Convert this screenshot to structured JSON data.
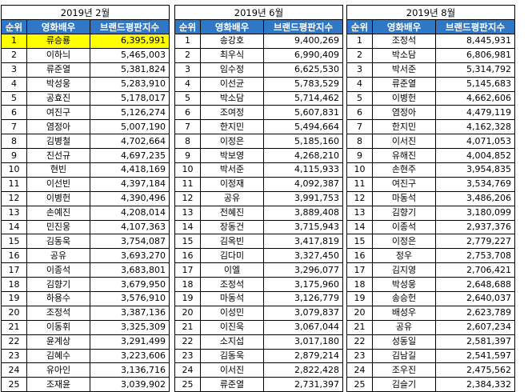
{
  "headers": {
    "rank": "순위",
    "actor": "영화배우",
    "index": "브랜드평판지수"
  },
  "highlight_color": "#ffff00",
  "header_color": "#2f78c7",
  "panels": [
    {
      "period": "2019년 2월",
      "rows": [
        {
          "rank": "1",
          "name": "류승룡",
          "value": "6,395,991",
          "hl": true
        },
        {
          "rank": "2",
          "name": "이하늬",
          "value": "5,465,003",
          "hl": false
        },
        {
          "rank": "3",
          "name": "류준열",
          "value": "5,381,824",
          "hl": false
        },
        {
          "rank": "4",
          "name": "박성웅",
          "value": "5,283,910",
          "hl": false
        },
        {
          "rank": "5",
          "name": "공효진",
          "value": "5,178,017",
          "hl": false
        },
        {
          "rank": "6",
          "name": "여진구",
          "value": "5,126,274",
          "hl": false
        },
        {
          "rank": "7",
          "name": "염정아",
          "value": "5,007,190",
          "hl": false
        },
        {
          "rank": "8",
          "name": "김병철",
          "value": "4,702,664",
          "hl": false
        },
        {
          "rank": "9",
          "name": "진선규",
          "value": "4,697,235",
          "hl": false
        },
        {
          "rank": "10",
          "name": "현빈",
          "value": "4,418,169",
          "hl": false
        },
        {
          "rank": "11",
          "name": "이선빈",
          "value": "4,397,184",
          "hl": false
        },
        {
          "rank": "12",
          "name": "이병헌",
          "value": "4,390,496",
          "hl": false
        },
        {
          "rank": "13",
          "name": "손예진",
          "value": "4,208,014",
          "hl": false
        },
        {
          "rank": "14",
          "name": "민진웅",
          "value": "4,107,363",
          "hl": false
        },
        {
          "rank": "15",
          "name": "김동욱",
          "value": "3,754,087",
          "hl": false
        },
        {
          "rank": "16",
          "name": "공유",
          "value": "3,693,270",
          "hl": false
        },
        {
          "rank": "17",
          "name": "이종석",
          "value": "3,683,801",
          "hl": false
        },
        {
          "rank": "18",
          "name": "김향기",
          "value": "3,679,950",
          "hl": false
        },
        {
          "rank": "19",
          "name": "하용수",
          "value": "3,576,910",
          "hl": false
        },
        {
          "rank": "20",
          "name": "조정석",
          "value": "3,387,136",
          "hl": false
        },
        {
          "rank": "21",
          "name": "이동휘",
          "value": "3,325,309",
          "hl": false
        },
        {
          "rank": "22",
          "name": "윤계상",
          "value": "3,291,499",
          "hl": false
        },
        {
          "rank": "23",
          "name": "김혜수",
          "value": "3,223,606",
          "hl": false
        },
        {
          "rank": "24",
          "name": "유아인",
          "value": "3,136,716",
          "hl": false
        },
        {
          "rank": "25",
          "name": "조재윤",
          "value": "3,039,902",
          "hl": false
        }
      ]
    },
    {
      "period": "2019년 6월",
      "rows": [
        {
          "rank": "1",
          "name": "송강호",
          "value": "9,400,269",
          "hl": false
        },
        {
          "rank": "2",
          "name": "최우식",
          "value": "6,990,409",
          "hl": false
        },
        {
          "rank": "3",
          "name": "임수정",
          "value": "6,625,530",
          "hl": false
        },
        {
          "rank": "4",
          "name": "이선균",
          "value": "5,783,529",
          "hl": false
        },
        {
          "rank": "5",
          "name": "박소담",
          "value": "5,714,462",
          "hl": false
        },
        {
          "rank": "6",
          "name": "조여정",
          "value": "5,607,831",
          "hl": false
        },
        {
          "rank": "7",
          "name": "한지민",
          "value": "5,494,664",
          "hl": false
        },
        {
          "rank": "8",
          "name": "이정은",
          "value": "5,185,160",
          "hl": false
        },
        {
          "rank": "9",
          "name": "박보영",
          "value": "4,268,210",
          "hl": false
        },
        {
          "rank": "10",
          "name": "박서준",
          "value": "4,115,933",
          "hl": false
        },
        {
          "rank": "11",
          "name": "이정재",
          "value": "4,092,387",
          "hl": false
        },
        {
          "rank": "12",
          "name": "공유",
          "value": "3,991,753",
          "hl": false
        },
        {
          "rank": "13",
          "name": "전혜진",
          "value": "3,889,408",
          "hl": false
        },
        {
          "rank": "14",
          "name": "장동건",
          "value": "3,715,943",
          "hl": false
        },
        {
          "rank": "15",
          "name": "김옥빈",
          "value": "3,417,819",
          "hl": false
        },
        {
          "rank": "16",
          "name": "김다미",
          "value": "3,327,450",
          "hl": false
        },
        {
          "rank": "17",
          "name": "이엘",
          "value": "3,296,077",
          "hl": false
        },
        {
          "rank": "18",
          "name": "조정석",
          "value": "3,175,960",
          "hl": false
        },
        {
          "rank": "19",
          "name": "마동석",
          "value": "3,126,779",
          "hl": false
        },
        {
          "rank": "20",
          "name": "이성민",
          "value": "3,079,837",
          "hl": false
        },
        {
          "rank": "21",
          "name": "이진욱",
          "value": "3,067,044",
          "hl": false
        },
        {
          "rank": "22",
          "name": "소지섭",
          "value": "3,017,180",
          "hl": false
        },
        {
          "rank": "23",
          "name": "김동욱",
          "value": "2,879,214",
          "hl": false
        },
        {
          "rank": "24",
          "name": "이서진",
          "value": "2,822,428",
          "hl": false
        },
        {
          "rank": "25",
          "name": "류준열",
          "value": "2,731,397",
          "hl": false
        }
      ]
    },
    {
      "period": "2019년 8월",
      "rows": [
        {
          "rank": "1",
          "name": "조정석",
          "value": "8,445,931",
          "hl": false
        },
        {
          "rank": "2",
          "name": "박소담",
          "value": "6,806,981",
          "hl": false
        },
        {
          "rank": "3",
          "name": "박서준",
          "value": "5,314,792",
          "hl": false
        },
        {
          "rank": "4",
          "name": "류준열",
          "value": "5,145,683",
          "hl": false
        },
        {
          "rank": "5",
          "name": "이병헌",
          "value": "4,662,606",
          "hl": false
        },
        {
          "rank": "6",
          "name": "염정아",
          "value": "4,479,119",
          "hl": false
        },
        {
          "rank": "7",
          "name": "한지민",
          "value": "4,162,328",
          "hl": false
        },
        {
          "rank": "8",
          "name": "이서진",
          "value": "4,071,053",
          "hl": false
        },
        {
          "rank": "9",
          "name": "유해진",
          "value": "4,004,852",
          "hl": false
        },
        {
          "rank": "10",
          "name": "손현주",
          "value": "3,954,835",
          "hl": false
        },
        {
          "rank": "11",
          "name": "여진구",
          "value": "3,534,769",
          "hl": false
        },
        {
          "rank": "12",
          "name": "마동석",
          "value": "3,486,206",
          "hl": false
        },
        {
          "rank": "13",
          "name": "김향기",
          "value": "3,180,099",
          "hl": false
        },
        {
          "rank": "14",
          "name": "이종석",
          "value": "2,937,376",
          "hl": false
        },
        {
          "rank": "15",
          "name": "이정은",
          "value": "2,779,227",
          "hl": false
        },
        {
          "rank": "16",
          "name": "정우",
          "value": "2,753,708",
          "hl": false
        },
        {
          "rank": "17",
          "name": "김지영",
          "value": "2,706,421",
          "hl": false
        },
        {
          "rank": "18",
          "name": "박성웅",
          "value": "2,648,688",
          "hl": false
        },
        {
          "rank": "19",
          "name": "송승헌",
          "value": "2,640,037",
          "hl": false
        },
        {
          "rank": "20",
          "name": "배성우",
          "value": "2,623,789",
          "hl": false
        },
        {
          "rank": "21",
          "name": "공유",
          "value": "2,607,234",
          "hl": false
        },
        {
          "rank": "22",
          "name": "성동일",
          "value": "2,581,397",
          "hl": false
        },
        {
          "rank": "23",
          "name": "김남길",
          "value": "2,541,597",
          "hl": false
        },
        {
          "rank": "24",
          "name": "조우진",
          "value": "2,475,562",
          "hl": false
        },
        {
          "rank": "25",
          "name": "김슬기",
          "value": "2,384,332",
          "hl": false
        }
      ]
    }
  ]
}
